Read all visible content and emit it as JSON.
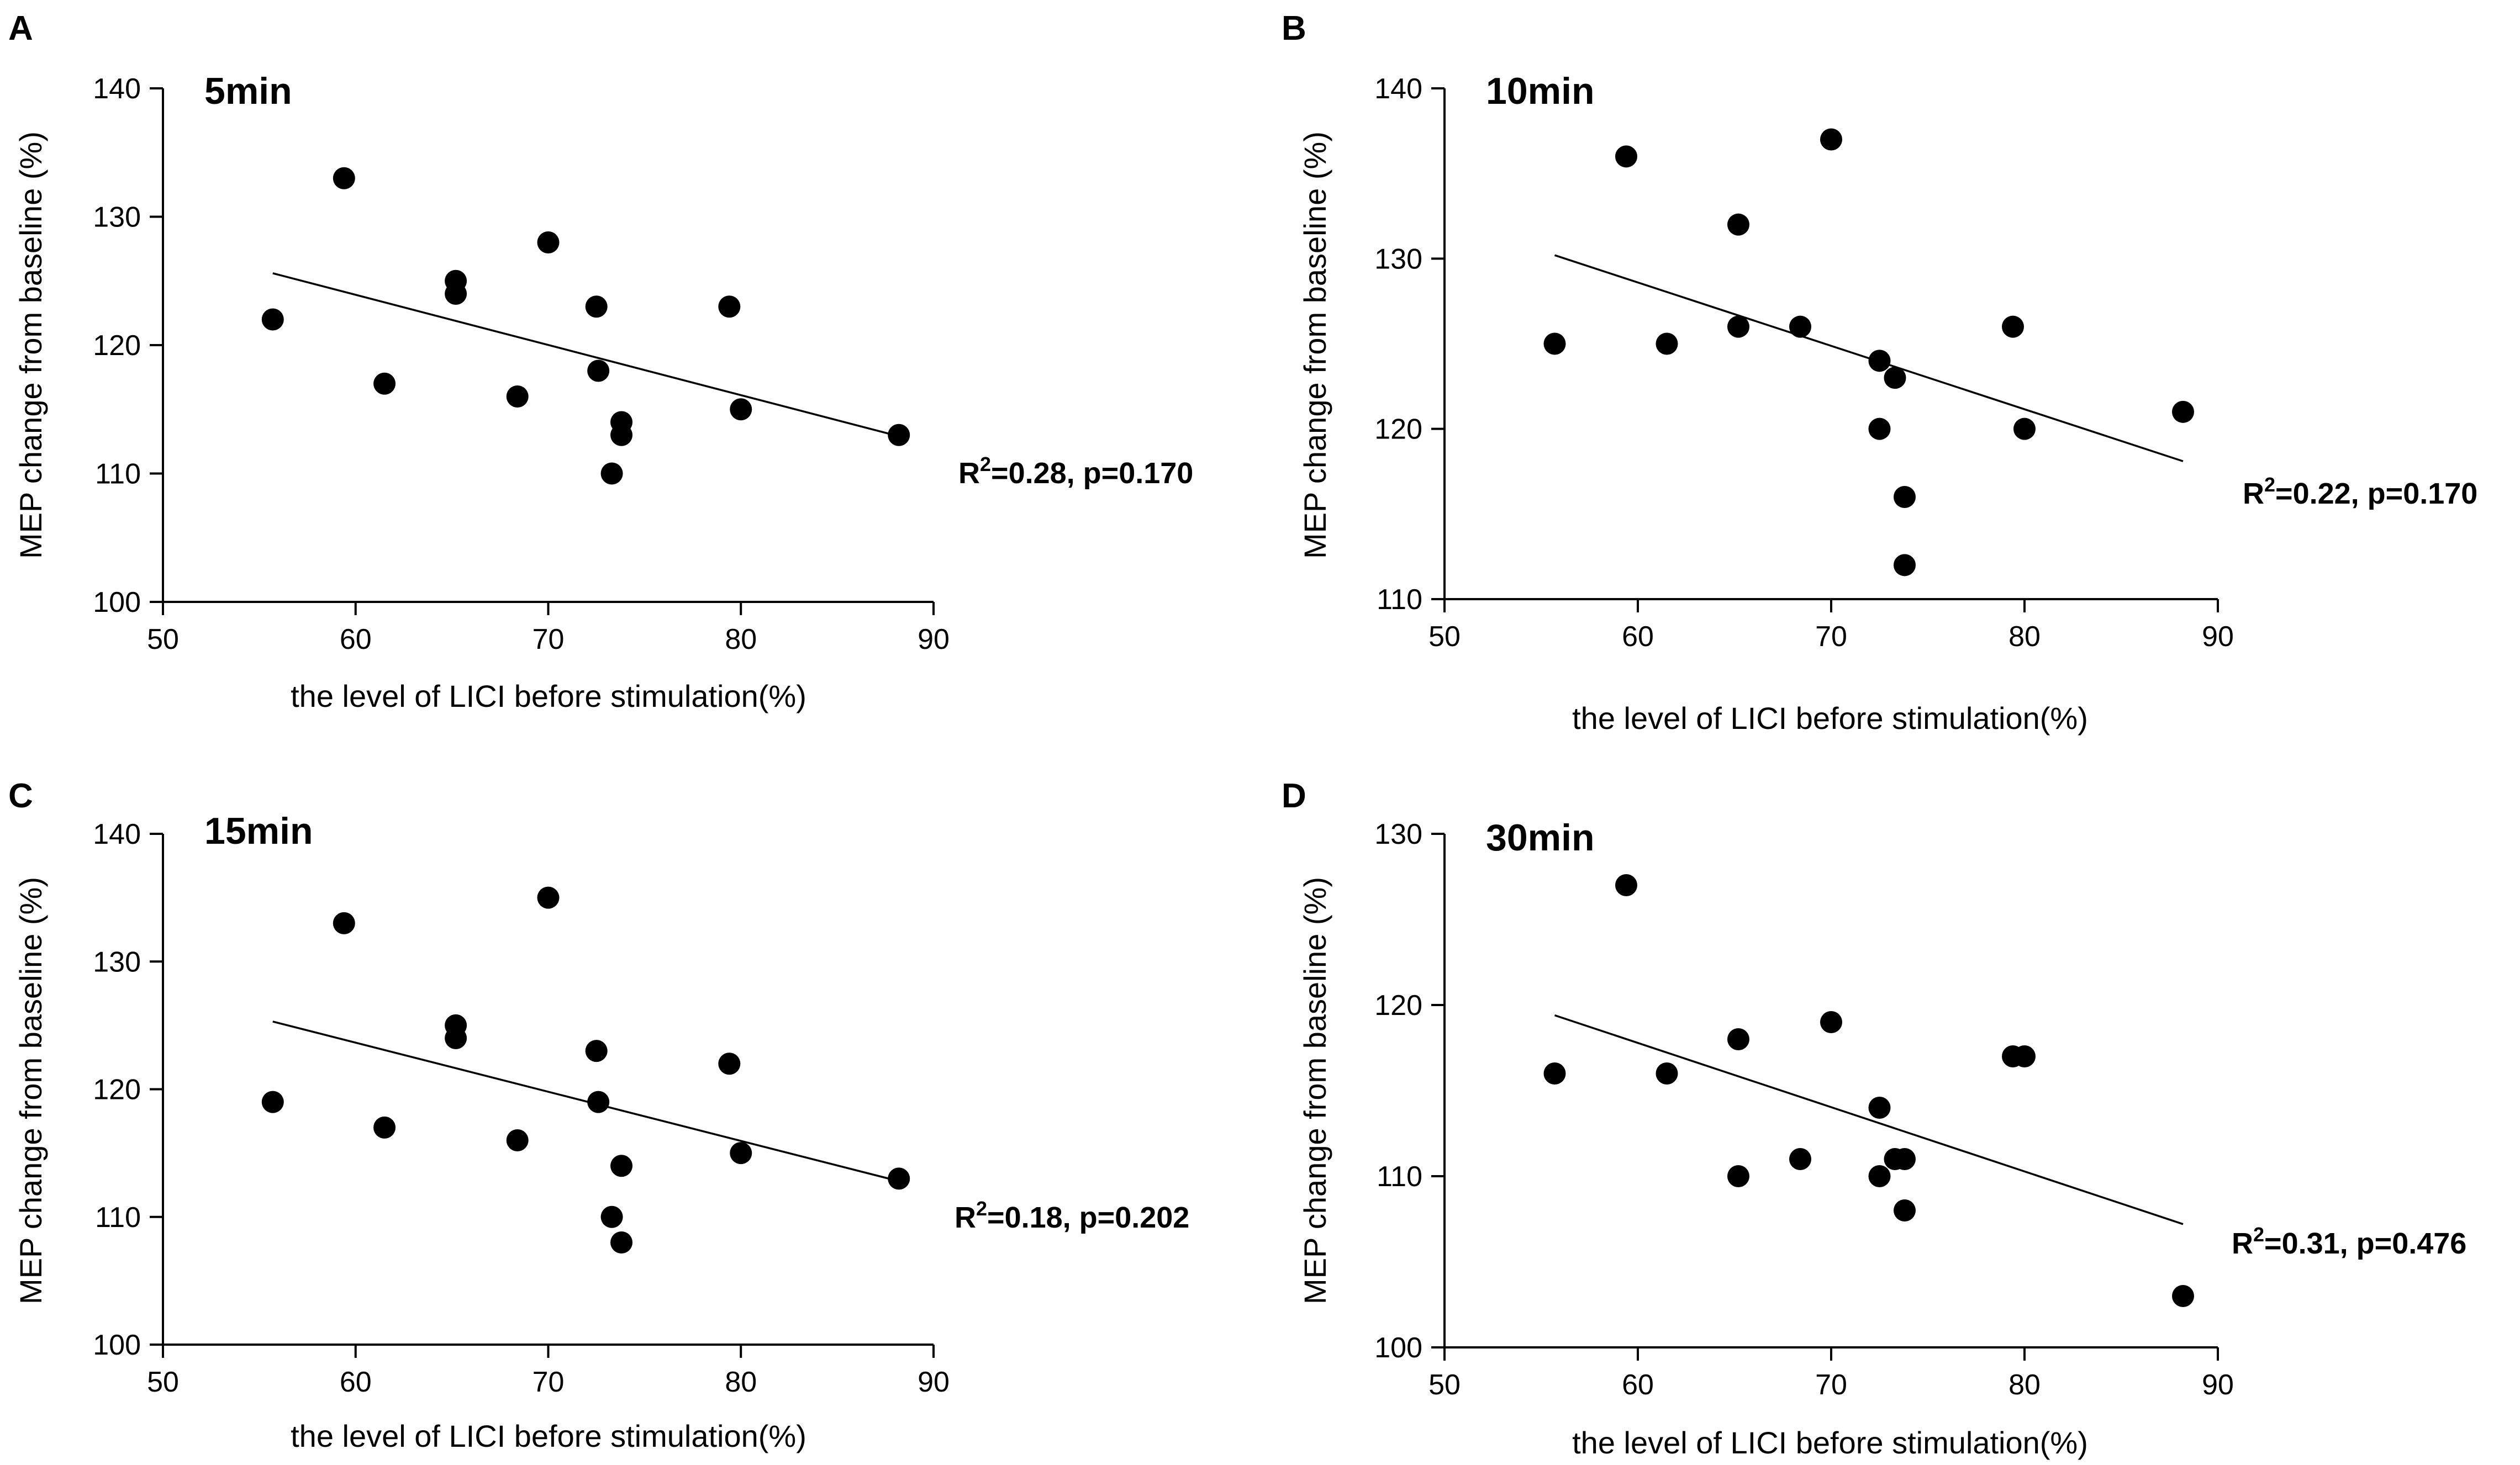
{
  "figure": {
    "panels": [
      {
        "letter": "A",
        "title": "5min",
        "stat": {
          "r2": "R",
          "sup": "2",
          "rest": "=0.28, p=0.170"
        }
      },
      {
        "letter": "B",
        "title": "10min",
        "stat": {
          "r2": "R",
          "sup": "2",
          "rest": "=0.22, p=0.170"
        }
      },
      {
        "letter": "C",
        "title": "15min",
        "stat": {
          "r2": "R",
          "sup": "2",
          "rest": "=0.18, p=0.202"
        }
      },
      {
        "letter": "D",
        "title": "30min",
        "stat": {
          "r2": "R",
          "sup": "2",
          "rest": "=0.31, p=0.476"
        }
      }
    ]
  },
  "chart_data": [
    {
      "type": "scatter",
      "panel": "A",
      "title": "5min",
      "xlabel": "the level of LICI before stimulation(%)",
      "ylabel": "MEP change from baseline (%)",
      "xlim": [
        50,
        90
      ],
      "ylim": [
        100,
        140
      ],
      "xticks": [
        50,
        60,
        70,
        80,
        90
      ],
      "yticks": [
        100,
        110,
        120,
        130,
        140
      ],
      "points": [
        [
          55.7,
          122
        ],
        [
          59.4,
          133
        ],
        [
          61.5,
          117
        ],
        [
          65.2,
          125
        ],
        [
          65.2,
          124
        ],
        [
          68.4,
          116
        ],
        [
          70,
          128
        ],
        [
          72.5,
          123
        ],
        [
          72.6,
          118
        ],
        [
          73.3,
          110
        ],
        [
          73.8,
          114
        ],
        [
          73.8,
          113
        ],
        [
          79.4,
          123
        ],
        [
          80,
          115
        ],
        [
          88.2,
          113
        ]
      ],
      "fit_line": {
        "x": [
          55.7,
          88.2
        ],
        "y": [
          125.6,
          112.9
        ]
      },
      "annotation": "R2=0.28, p=0.170"
    },
    {
      "type": "scatter",
      "panel": "B",
      "title": "10min",
      "xlabel": "the level of LICI before stimulation(%)",
      "ylabel": "MEP change from baseline (%)",
      "xlim": [
        50,
        90
      ],
      "ylim": [
        110,
        140
      ],
      "xticks": [
        50,
        60,
        70,
        80,
        90
      ],
      "yticks": [
        110,
        120,
        130,
        140
      ],
      "points": [
        [
          55.7,
          125
        ],
        [
          59.4,
          136
        ],
        [
          61.5,
          125
        ],
        [
          65.2,
          132
        ],
        [
          65.2,
          126
        ],
        [
          68.4,
          126
        ],
        [
          70,
          137
        ],
        [
          72.5,
          124
        ],
        [
          72.5,
          120
        ],
        [
          73.3,
          123
        ],
        [
          73.8,
          116
        ],
        [
          73.8,
          112
        ],
        [
          79.4,
          126
        ],
        [
          80,
          120
        ],
        [
          88.2,
          121
        ]
      ],
      "fit_line": {
        "x": [
          55.7,
          88.2
        ],
        "y": [
          130.2,
          118.1
        ]
      },
      "annotation": "R2=0.22, p=0.170"
    },
    {
      "type": "scatter",
      "panel": "C",
      "title": "15min",
      "xlabel": "the level of LICI before stimulation(%)",
      "ylabel": "MEP change from baseline (%)",
      "xlim": [
        50,
        90
      ],
      "ylim": [
        100,
        140
      ],
      "xticks": [
        50,
        60,
        70,
        80,
        90
      ],
      "yticks": [
        100,
        110,
        120,
        130,
        140
      ],
      "points": [
        [
          55.7,
          119
        ],
        [
          59.4,
          133
        ],
        [
          61.5,
          117
        ],
        [
          65.2,
          125
        ],
        [
          65.2,
          124
        ],
        [
          68.4,
          116
        ],
        [
          70,
          135
        ],
        [
          72.5,
          123
        ],
        [
          72.6,
          119
        ],
        [
          73.3,
          110
        ],
        [
          73.8,
          114
        ],
        [
          73.8,
          108
        ],
        [
          79.4,
          122
        ],
        [
          80,
          115
        ],
        [
          88.2,
          113
        ]
      ],
      "fit_line": {
        "x": [
          55.7,
          88.2
        ],
        "y": [
          125.3,
          112.8
        ]
      },
      "annotation": "R2=0.18, p=0.202"
    },
    {
      "type": "scatter",
      "panel": "D",
      "title": "30min",
      "xlabel": "the level of LICI before stimulation(%)",
      "ylabel": "MEP change from baseline (%)",
      "xlim": [
        50,
        90
      ],
      "ylim": [
        100,
        130
      ],
      "xticks": [
        50,
        60,
        70,
        80,
        90
      ],
      "yticks": [
        100,
        110,
        120,
        130
      ],
      "points": [
        [
          55.7,
          116
        ],
        [
          59.4,
          127
        ],
        [
          61.5,
          116
        ],
        [
          65.2,
          118
        ],
        [
          65.2,
          110
        ],
        [
          68.4,
          111
        ],
        [
          70,
          119
        ],
        [
          72.5,
          114
        ],
        [
          72.5,
          110
        ],
        [
          73.3,
          111
        ],
        [
          73.8,
          111
        ],
        [
          73.8,
          108
        ],
        [
          79.4,
          117
        ],
        [
          80,
          117
        ],
        [
          88.2,
          103
        ]
      ],
      "fit_line": {
        "x": [
          55.7,
          88.2
        ],
        "y": [
          119.4,
          107.2
        ]
      },
      "annotation": "R2=0.31, p=0.476"
    }
  ]
}
